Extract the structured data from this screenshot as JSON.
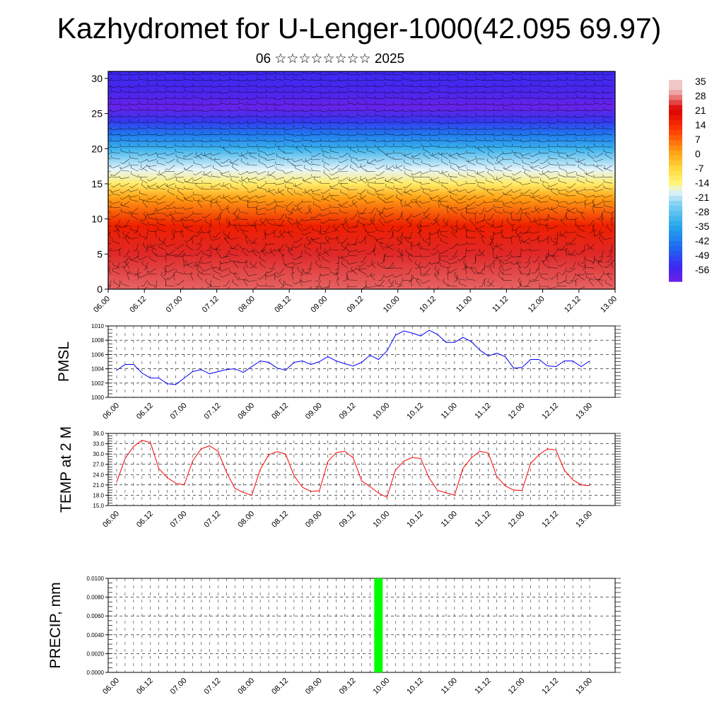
{
  "title": "Kazhydromet for U-Lenger-1000(42.095 69.97)",
  "subtitle": "06 ☆☆☆☆☆☆☆☆ 2025",
  "time_ticks": [
    "06.00",
    "06.12",
    "07.00",
    "07.12",
    "08.00",
    "08.12",
    "09.00",
    "09.12",
    "10.00",
    "10.12",
    "11.00",
    "11.12",
    "12.00",
    "12.12",
    "13.00"
  ],
  "colors": {
    "pmsl_line": "#0000ff",
    "temp_line": "#ff0000",
    "precip_bar": "#00ff00"
  },
  "chart_data": [
    {
      "type": "heatmap",
      "title": "",
      "xlabel": "",
      "ylabel": "",
      "x_categories": [
        "06.00",
        "06.12",
        "07.00",
        "07.12",
        "08.00",
        "08.12",
        "09.00",
        "09.12",
        "10.00",
        "10.12",
        "11.00",
        "11.12",
        "12.00",
        "12.12",
        "13.00"
      ],
      "ylim": [
        0,
        31
      ],
      "y_ticks": [
        0,
        5,
        10,
        15,
        20,
        25,
        30
      ],
      "colorbar_labels": [
        "35",
        "28",
        "21",
        "14",
        "7",
        "0",
        "-7",
        "-14",
        "-21",
        "-28",
        "-35",
        "-42",
        "-49",
        "-56"
      ],
      "overlay": "wind barbs",
      "level_profile_values": [
        {
          "level": 0,
          "value": 30
        },
        {
          "level": 5,
          "value": 27
        },
        {
          "level": 9,
          "value": 20
        },
        {
          "level": 13,
          "value": 5
        },
        {
          "level": 15,
          "value": -8
        },
        {
          "level": 17,
          "value": -14
        },
        {
          "level": 20,
          "value": -28
        },
        {
          "level": 22,
          "value": -38
        },
        {
          "level": 24,
          "value": -48
        },
        {
          "level": 26,
          "value": -56
        },
        {
          "level": 28,
          "value": -52
        },
        {
          "level": 31,
          "value": -50
        }
      ]
    },
    {
      "type": "line",
      "ylabel": "PMSL",
      "ylim": [
        1000,
        1010
      ],
      "y_ticks": [
        "1000",
        "1002",
        "1004",
        "1006",
        "1008",
        "1010"
      ],
      "x_ticks": [
        "06.00",
        "06.12",
        "07.00",
        "07.12",
        "08.00",
        "08.12",
        "09.00",
        "09.12",
        "10.00",
        "10.12",
        "11.00",
        "11.12",
        "12.00",
        "12.12",
        "13.00"
      ],
      "x_step_hours": 3,
      "grid": true,
      "series": [
        {
          "values": [
            1003.8,
            1004.6,
            1004.6,
            1003.4,
            1002.7,
            1002.7,
            1001.9,
            1001.8,
            1002.7,
            1003.6,
            1003.9,
            1003.3,
            1003.6,
            1003.9,
            1004.0,
            1003.5,
            1004.3,
            1005.1,
            1004.9,
            1004.1,
            1003.8,
            1004.9,
            1005.1,
            1004.6,
            1005.0,
            1005.7,
            1005.1,
            1004.7,
            1004.4,
            1004.9,
            1005.9,
            1005.3,
            1006.5,
            1008.7,
            1009.3,
            1009.0,
            1008.6,
            1009.4,
            1008.8,
            1007.7,
            1007.7,
            1008.4,
            1007.8,
            1006.6,
            1005.8,
            1006.2,
            1005.7,
            1004.1,
            1004.2,
            1005.3,
            1005.3,
            1004.4,
            1004.3,
            1005.1,
            1005.1,
            1004.3,
            1005.1
          ]
        }
      ]
    },
    {
      "type": "line",
      "ylabel": "TEMP at 2 M",
      "ylim": [
        15,
        36
      ],
      "y_ticks": [
        "15.0",
        "18.0",
        "21.0",
        "24.0",
        "27.0",
        "30.0",
        "33.0",
        "36.0"
      ],
      "x_ticks": [
        "06.00",
        "06.12",
        "07.00",
        "07.12",
        "08.00",
        "08.12",
        "09.00",
        "09.12",
        "10.00",
        "10.12",
        "11.00",
        "11.12",
        "12.00",
        "12.12",
        "13.00"
      ],
      "x_step_hours": 3,
      "grid": true,
      "series": [
        {
          "values": [
            21.8,
            28.7,
            32.2,
            34.0,
            33.3,
            25.7,
            23.1,
            21.5,
            21.0,
            28.0,
            31.5,
            32.4,
            30.8,
            24.7,
            20.0,
            18.8,
            18.0,
            25.5,
            29.8,
            30.7,
            30.0,
            23.7,
            20.3,
            19.1,
            19.3,
            27.8,
            30.4,
            30.8,
            28.9,
            22.2,
            20.5,
            18.6,
            17.4,
            25.3,
            27.9,
            29.0,
            28.7,
            23.0,
            19.4,
            18.7,
            18.0,
            25.8,
            28.9,
            30.8,
            30.3,
            23.5,
            20.7,
            19.5,
            19.4,
            27.2,
            29.8,
            31.5,
            31.2,
            25.3,
            22.5,
            21.0,
            20.8
          ]
        }
      ]
    },
    {
      "type": "bar",
      "ylabel": "PRECIP, mm",
      "ylim": [
        0,
        0.01
      ],
      "y_ticks": [
        "0.0000",
        "0.0020",
        "0.0040",
        "0.0060",
        "0.0080",
        "0.0100"
      ],
      "x_ticks": [
        "06.00",
        "06.12",
        "07.00",
        "07.12",
        "08.00",
        "08.12",
        "09.00",
        "09.12",
        "10.00",
        "10.12",
        "11.00",
        "11.12",
        "12.00",
        "12.12",
        "13.00"
      ],
      "grid": true,
      "bars": [
        {
          "x": "09.21",
          "value": 0.01
        }
      ]
    }
  ]
}
